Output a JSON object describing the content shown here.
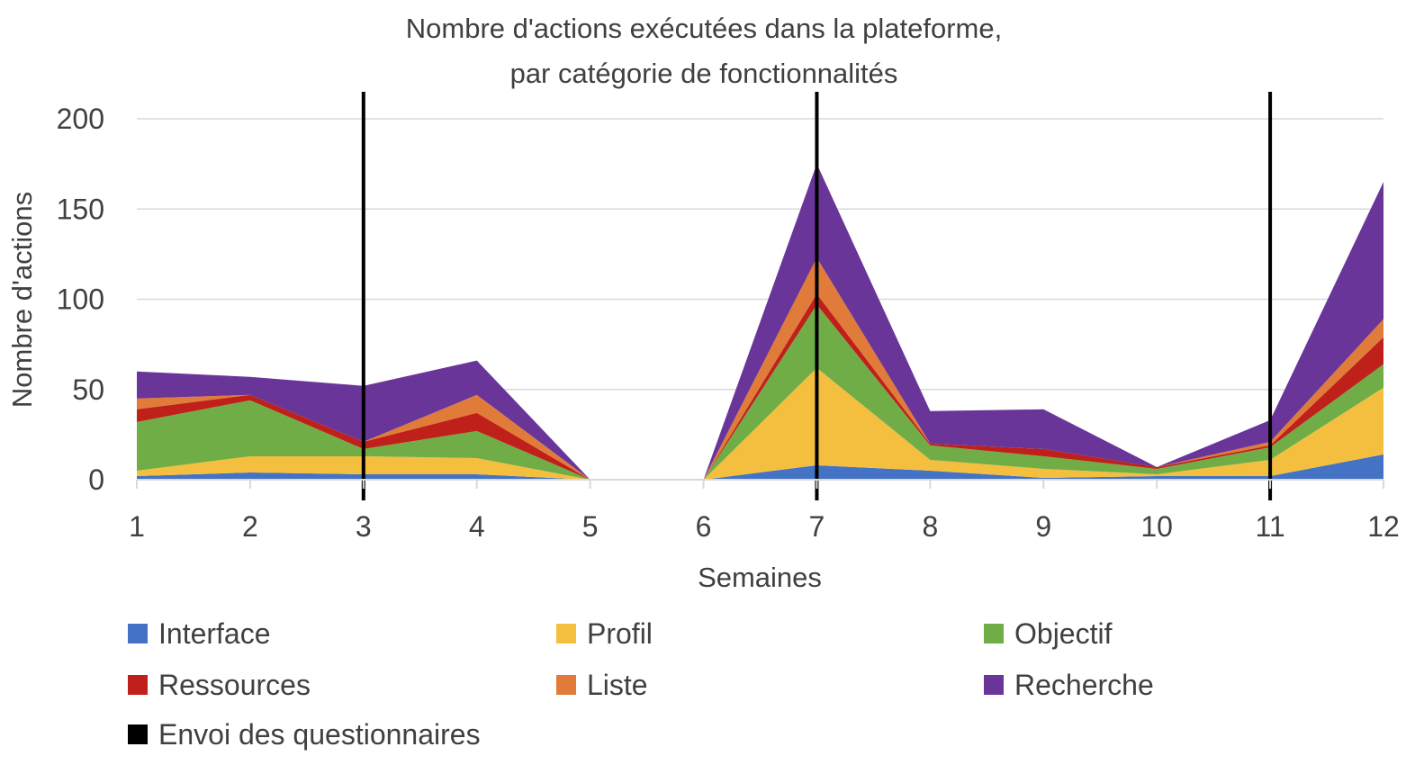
{
  "chart_data": {
    "type": "area",
    "stacked": true,
    "title_lines": [
      "Nombre d'actions exécutées dans la plateforme,",
      "par catégorie de fonctionnalités"
    ],
    "xlabel": "Semaines",
    "ylabel": "Nombre d'actions",
    "x": [
      1,
      2,
      3,
      4,
      5,
      6,
      7,
      8,
      9,
      10,
      11,
      12
    ],
    "x_tick_labels": [
      "1",
      "2",
      "3",
      "4",
      "5",
      "6",
      "7",
      "8",
      "9",
      "10",
      "11",
      "12"
    ],
    "ylim": [
      0,
      200
    ],
    "y_ticks": [
      0,
      50,
      100,
      150,
      200
    ],
    "y_tick_labels": [
      "0",
      "50",
      "100",
      "150",
      "200"
    ],
    "grid": true,
    "legend_position": "bottom",
    "series": [
      {
        "name": "Interface",
        "color": "#4472C4",
        "values": [
          2,
          4,
          3,
          3,
          0,
          0,
          8,
          5,
          1,
          2,
          2,
          14
        ]
      },
      {
        "name": "Profil",
        "color": "#F4BF3F",
        "values": [
          3,
          9,
          10,
          9,
          0,
          0,
          54,
          6,
          5,
          1,
          9,
          37
        ]
      },
      {
        "name": "Objectif",
        "color": "#70AD47",
        "values": [
          27,
          31,
          4,
          15,
          0,
          0,
          35,
          8,
          7,
          3,
          7,
          13
        ]
      },
      {
        "name": "Ressources",
        "color": "#C0201A",
        "values": [
          7,
          3,
          4,
          10,
          0,
          0,
          6,
          1,
          4,
          1,
          1,
          15
        ]
      },
      {
        "name": "Liste",
        "color": "#E07B39",
        "values": [
          6,
          0,
          0,
          10,
          0,
          0,
          20,
          0,
          0,
          0,
          2,
          10
        ]
      },
      {
        "name": "Recherche",
        "color": "#6A3599",
        "values": [
          15,
          10,
          31,
          19,
          0,
          0,
          52,
          18,
          22,
          0,
          12,
          76
        ]
      }
    ],
    "vertical_markers": {
      "name": "Envoi des questionnaires",
      "color": "#000000",
      "x": [
        3,
        7,
        11
      ]
    }
  }
}
